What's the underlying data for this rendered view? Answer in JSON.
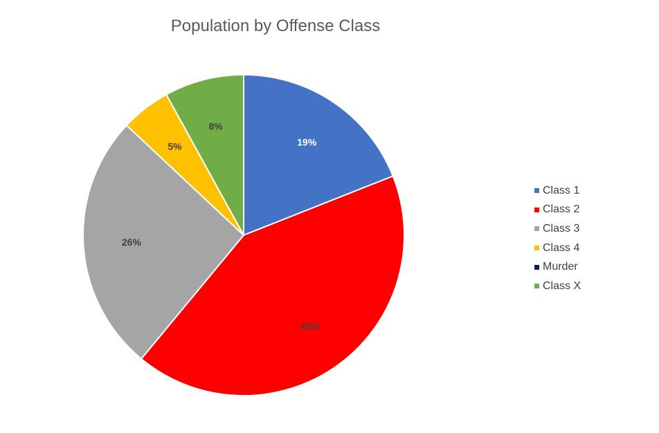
{
  "chart_data": {
    "type": "pie",
    "title": "Population by Offense Class",
    "categories": [
      "Class 1",
      "Class 2",
      "Class 3",
      "Class 4",
      "Murder",
      "Class X"
    ],
    "values": [
      19,
      42,
      26,
      5,
      0,
      8
    ],
    "data_labels": [
      "19%",
      "42%",
      "26%",
      "5%",
      "",
      "8%"
    ],
    "colors": [
      "#4472C4",
      "#FF0000",
      "#A5A5A5",
      "#FFC000",
      "#002060",
      "#70AD47"
    ],
    "label_colors": [
      "#ffffff",
      "#404040",
      "#404040",
      "#404040",
      "#404040",
      "#404040"
    ],
    "legend_position": "right"
  }
}
